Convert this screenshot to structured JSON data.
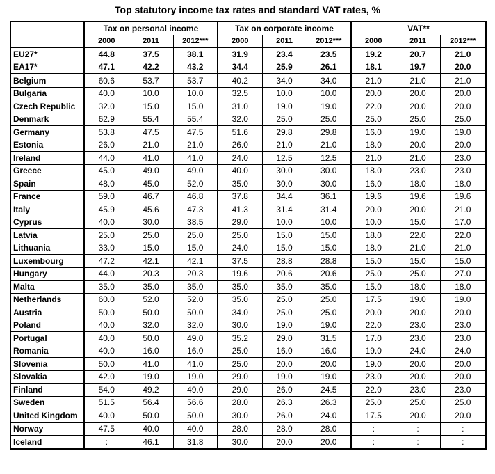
{
  "title": "Top statutory income tax rates and standard VAT rates, %",
  "groups": [
    "Tax on personal income",
    "Tax on corporate income",
    "VAT**"
  ],
  "years": [
    "2000",
    "2011",
    "2012***"
  ],
  "aggregates": [
    {
      "country": "EU27*",
      "values": [
        "44.8",
        "37.5",
        "38.1",
        "31.9",
        "23.4",
        "23.5",
        "19.2",
        "20.7",
        "21.0"
      ]
    },
    {
      "country": "EA17*",
      "values": [
        "47.1",
        "42.2",
        "43.2",
        "34.4",
        "25.9",
        "26.1",
        "18.1",
        "19.7",
        "20.0"
      ]
    }
  ],
  "rows": [
    {
      "country": "Belgium",
      "values": [
        "60.6",
        "53.7",
        "53.7",
        "40.2",
        "34.0",
        "34.0",
        "21.0",
        "21.0",
        "21.0"
      ]
    },
    {
      "country": "Bulgaria",
      "values": [
        "40.0",
        "10.0",
        "10.0",
        "32.5",
        "10.0",
        "10.0",
        "20.0",
        "20.0",
        "20.0"
      ]
    },
    {
      "country": "Czech Republic",
      "values": [
        "32.0",
        "15.0",
        "15.0",
        "31.0",
        "19.0",
        "19.0",
        "22.0",
        "20.0",
        "20.0"
      ]
    },
    {
      "country": "Denmark",
      "values": [
        "62.9",
        "55.4",
        "55.4",
        "32.0",
        "25.0",
        "25.0",
        "25.0",
        "25.0",
        "25.0"
      ]
    },
    {
      "country": "Germany",
      "values": [
        "53.8",
        "47.5",
        "47.5",
        "51.6",
        "29.8",
        "29.8",
        "16.0",
        "19.0",
        "19.0"
      ]
    },
    {
      "country": "Estonia",
      "values": [
        "26.0",
        "21.0",
        "21.0",
        "26.0",
        "21.0",
        "21.0",
        "18.0",
        "20.0",
        "20.0"
      ]
    },
    {
      "country": "Ireland",
      "values": [
        "44.0",
        "41.0",
        "41.0",
        "24.0",
        "12.5",
        "12.5",
        "21.0",
        "21.0",
        "23.0"
      ]
    },
    {
      "country": "Greece",
      "values": [
        "45.0",
        "49.0",
        "49.0",
        "40.0",
        "30.0",
        "30.0",
        "18.0",
        "23.0",
        "23.0"
      ]
    },
    {
      "country": "Spain",
      "values": [
        "48.0",
        "45.0",
        "52.0",
        "35.0",
        "30.0",
        "30.0",
        "16.0",
        "18.0",
        "18.0"
      ]
    },
    {
      "country": "France",
      "values": [
        "59.0",
        "46.7",
        "46.8",
        "37.8",
        "34.4",
        "36.1",
        "19.6",
        "19.6",
        "19.6"
      ]
    },
    {
      "country": "Italy",
      "values": [
        "45.9",
        "45.6",
        "47.3",
        "41.3",
        "31.4",
        "31.4",
        "20.0",
        "20.0",
        "21.0"
      ]
    },
    {
      "country": "Cyprus",
      "values": [
        "40.0",
        "30.0",
        "38.5",
        "29.0",
        "10.0",
        "10.0",
        "10.0",
        "15.0",
        "17.0"
      ]
    },
    {
      "country": "Latvia",
      "values": [
        "25.0",
        "25.0",
        "25.0",
        "25.0",
        "15.0",
        "15.0",
        "18.0",
        "22.0",
        "22.0"
      ]
    },
    {
      "country": "Lithuania",
      "values": [
        "33.0",
        "15.0",
        "15.0",
        "24.0",
        "15.0",
        "15.0",
        "18.0",
        "21.0",
        "21.0"
      ]
    },
    {
      "country": "Luxembourg",
      "values": [
        "47.2",
        "42.1",
        "42.1",
        "37.5",
        "28.8",
        "28.8",
        "15.0",
        "15.0",
        "15.0"
      ]
    },
    {
      "country": "Hungary",
      "values": [
        "44.0",
        "20.3",
        "20.3",
        "19.6",
        "20.6",
        "20.6",
        "25.0",
        "25.0",
        "27.0"
      ]
    },
    {
      "country": "Malta",
      "values": [
        "35.0",
        "35.0",
        "35.0",
        "35.0",
        "35.0",
        "35.0",
        "15.0",
        "18.0",
        "18.0"
      ]
    },
    {
      "country": "Netherlands",
      "values": [
        "60.0",
        "52.0",
        "52.0",
        "35.0",
        "25.0",
        "25.0",
        "17.5",
        "19.0",
        "19.0"
      ]
    },
    {
      "country": "Austria",
      "values": [
        "50.0",
        "50.0",
        "50.0",
        "34.0",
        "25.0",
        "25.0",
        "20.0",
        "20.0",
        "20.0"
      ]
    },
    {
      "country": "Poland",
      "values": [
        "40.0",
        "32.0",
        "32.0",
        "30.0",
        "19.0",
        "19.0",
        "22.0",
        "23.0",
        "23.0"
      ]
    },
    {
      "country": "Portugal",
      "values": [
        "40.0",
        "50.0",
        "49.0",
        "35.2",
        "29.0",
        "31.5",
        "17.0",
        "23.0",
        "23.0"
      ]
    },
    {
      "country": "Romania",
      "values": [
        "40.0",
        "16.0",
        "16.0",
        "25.0",
        "16.0",
        "16.0",
        "19.0",
        "24.0",
        "24.0"
      ]
    },
    {
      "country": "Slovenia",
      "values": [
        "50.0",
        "41.0",
        "41.0",
        "25.0",
        "20.0",
        "20.0",
        "19.0",
        "20.0",
        "20.0"
      ]
    },
    {
      "country": "Slovakia",
      "values": [
        "42.0",
        "19.0",
        "19.0",
        "29.0",
        "19.0",
        "19.0",
        "23.0",
        "20.0",
        "20.0"
      ]
    },
    {
      "country": "Finland",
      "values": [
        "54.0",
        "49.2",
        "49.0",
        "29.0",
        "26.0",
        "24.5",
        "22.0",
        "23.0",
        "23.0"
      ]
    },
    {
      "country": "Sweden",
      "values": [
        "51.5",
        "56.4",
        "56.6",
        "28.0",
        "26.3",
        "26.3",
        "25.0",
        "25.0",
        "25.0"
      ]
    },
    {
      "country": "United Kingdom",
      "values": [
        "40.0",
        "50.0",
        "50.0",
        "30.0",
        "26.0",
        "24.0",
        "17.5",
        "20.0",
        "20.0"
      ]
    }
  ],
  "efta": [
    {
      "country": "Norway",
      "values": [
        "47.5",
        "40.0",
        "40.0",
        "28.0",
        "28.0",
        "28.0",
        ":",
        ":",
        ":"
      ]
    },
    {
      "country": "Iceland",
      "values": [
        ":",
        "46.1",
        "31.8",
        "30.0",
        "20.0",
        "20.0",
        ":",
        ":",
        ":"
      ]
    }
  ]
}
